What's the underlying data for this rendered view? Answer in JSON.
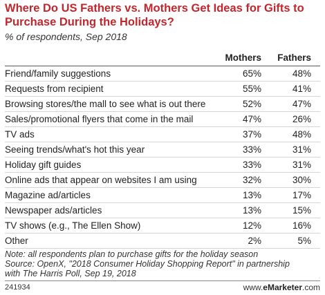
{
  "title": "Where Do US Fathers vs. Mothers Get Ideas for Gifts to Purchase During the Holidays?",
  "subtitle": "% of respondents, Sep 2018",
  "chart_data": {
    "type": "table",
    "columns": [
      "Mothers",
      "Fathers"
    ],
    "rows": [
      {
        "label": "Friend/family suggestions",
        "mothers": "65%",
        "fathers": "48%"
      },
      {
        "label": "Requests from recipient",
        "mothers": "55%",
        "fathers": "41%"
      },
      {
        "label": "Browsing stores/the mall to see what is out there",
        "mothers": "52%",
        "fathers": "47%"
      },
      {
        "label": "Sales/promotional flyers that come in the mail",
        "mothers": "47%",
        "fathers": "26%"
      },
      {
        "label": "TV ads",
        "mothers": "37%",
        "fathers": "48%"
      },
      {
        "label": "Seeing trends/what's hot this year",
        "mothers": "33%",
        "fathers": "31%"
      },
      {
        "label": "Holiday gift guides",
        "mothers": "33%",
        "fathers": "31%"
      },
      {
        "label": "Online ads that appear on websites I am using",
        "mothers": "32%",
        "fathers": "30%"
      },
      {
        "label": "Magazine ad/articles",
        "mothers": "13%",
        "fathers": "17%"
      },
      {
        "label": "Newspaper ads/articles",
        "mothers": "13%",
        "fathers": "15%"
      },
      {
        "label": "TV shows (e.g., The Ellen Show)",
        "mothers": "12%",
        "fathers": "16%"
      },
      {
        "label": "Other",
        "mothers": "2%",
        "fathers": "5%"
      }
    ]
  },
  "note": {
    "line1": "Note: all respondents plan to purchase gifts for the holiday season",
    "line2": "Source: OpenX, \"2018 Consumer Holiday Shopping Report\" in partnership",
    "line3": "with The Harris Poll, Sep 19, 2018"
  },
  "footer": {
    "code": "241934",
    "brand_prefix": "www.",
    "brand_name": "eMarketer",
    "brand_suffix": ".com"
  }
}
